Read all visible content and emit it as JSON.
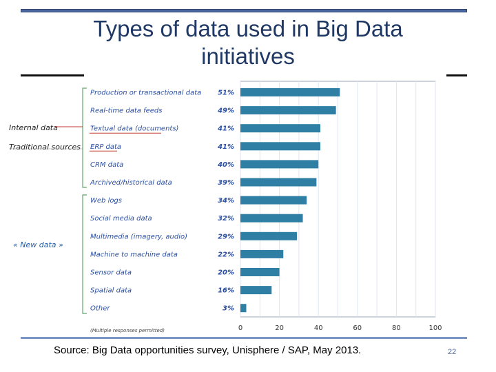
{
  "slide": {
    "title": "Types of data used in Big Data initiatives",
    "source": "Source: Big Data opportunities survey, Unisphere / SAP, May 2013.",
    "page_number": "22"
  },
  "groups": {
    "internal": "Internal data",
    "traditional": "Traditional sources",
    "new": "« New data »"
  },
  "colors": {
    "bar": "#2e7fa3",
    "bracket": "#5fa86a",
    "title": "#1f3864"
  },
  "chart_data": {
    "type": "bar",
    "orientation": "horizontal",
    "categories": [
      "Production or transactional data",
      "Real-time data feeds",
      "Textual data (documents)",
      "ERP data",
      "CRM data",
      "Archived/historical data",
      "Web logs",
      "Social media data",
      "Multimedia (imagery, audio)",
      "Machine to machine data",
      "Sensor data",
      "Spatial data",
      "Other"
    ],
    "values": [
      51,
      49,
      41,
      41,
      40,
      39,
      34,
      32,
      29,
      22,
      20,
      16,
      3
    ],
    "value_labels": [
      "51%",
      "49%",
      "41%",
      "41%",
      "40%",
      "39%",
      "34%",
      "32%",
      "29%",
      "22%",
      "20%",
      "16%",
      "3%"
    ],
    "xlim": [
      0,
      100
    ],
    "xticks": [
      "0",
      "20",
      "40",
      "60",
      "80",
      "100"
    ],
    "grid": true,
    "note": "(Multiple responses permitted)"
  }
}
